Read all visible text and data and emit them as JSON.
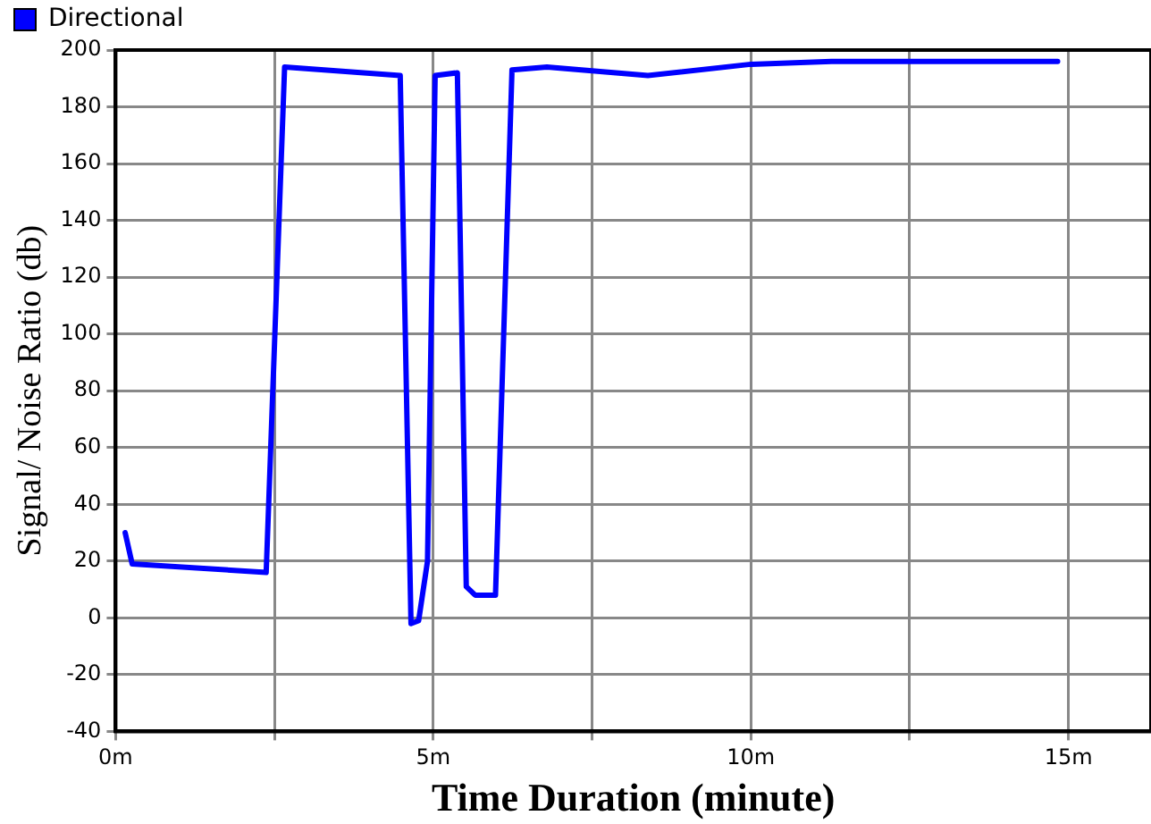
{
  "chart_data": {
    "type": "line",
    "xlabel": "Time Duration (minute)",
    "ylabel": "Signal/ Noise Ratio (db)",
    "series": [
      {
        "name": "Directional",
        "color": "#0000ff",
        "x": [
          0.15,
          0.26,
          2.37,
          2.66,
          4.48,
          4.65,
          4.77,
          4.91,
          5.03,
          5.38,
          5.52,
          5.66,
          5.98,
          6.24,
          6.79,
          8.38,
          10,
          11.27,
          14.83
        ],
        "values": [
          30,
          19,
          16,
          194,
          191,
          -2,
          -1,
          20,
          191,
          192,
          11,
          8,
          8,
          193,
          194,
          191,
          195,
          196,
          196
        ]
      }
    ],
    "xlim": [
      0,
      16.3
    ],
    "xticks": [
      {
        "value": 0,
        "label": "0m"
      },
      {
        "value": 2.5,
        "label": null
      },
      {
        "value": 5,
        "label": "5m"
      },
      {
        "value": 7.5,
        "label": null
      },
      {
        "value": 10,
        "label": "10m"
      },
      {
        "value": 12.5,
        "label": null
      },
      {
        "value": 15,
        "label": "15m"
      }
    ],
    "ylim": [
      -40,
      200
    ],
    "yticks": [
      -40,
      -20,
      0,
      20,
      40,
      60,
      80,
      100,
      120,
      140,
      160,
      180,
      200
    ],
    "grid": true,
    "legend": "top left",
    "marker": "none",
    "line_style": "solid"
  }
}
